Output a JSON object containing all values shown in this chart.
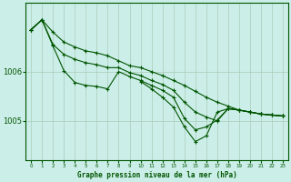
{
  "background_color": "#cceee8",
  "grid_color": "#aaccbb",
  "line_color": "#005500",
  "title": "Graphe pression niveau de la mer (hPa)",
  "title_color": "#005500",
  "hours": [
    0,
    1,
    2,
    3,
    4,
    5,
    6,
    7,
    8,
    9,
    10,
    11,
    12,
    13,
    14,
    15,
    16,
    17,
    18,
    19,
    20,
    21,
    22,
    23
  ],
  "yticks": [
    1005.0,
    1006.0
  ],
  "ylim": [
    1004.2,
    1007.4
  ],
  "xlim": [
    -0.5,
    23.5
  ],
  "line_upper": [
    1006.85,
    1007.05,
    1006.8,
    1006.6,
    1006.5,
    1006.42,
    1006.38,
    1006.32,
    1006.22,
    1006.12,
    1006.08,
    1006.0,
    1005.92,
    1005.82,
    1005.72,
    1005.6,
    1005.48,
    1005.38,
    1005.3,
    1005.22,
    1005.18,
    1005.14,
    1005.12,
    1005.1
  ],
  "line_mid1": [
    1006.85,
    1007.05,
    1006.55,
    1006.35,
    1006.25,
    1006.18,
    1006.14,
    1006.08,
    1006.08,
    1005.98,
    1005.92,
    1005.82,
    1005.74,
    1005.62,
    1005.38,
    1005.18,
    1005.08,
    1005.0,
    1005.25,
    1005.22,
    1005.18,
    1005.14,
    1005.12,
    1005.1
  ],
  "line_mid2": [
    1006.85,
    1007.05,
    1006.52,
    1006.02,
    1005.78,
    1005.72,
    1005.7,
    1005.65,
    1006.0,
    1005.9,
    1005.82,
    1005.72,
    1005.62,
    1005.48,
    1005.05,
    1004.82,
    1004.88,
    1005.02,
    1005.25,
    1005.22,
    1005.18,
    1005.14,
    1005.12,
    1005.1
  ],
  "line_deep": [
    1006.85,
    1007.05,
    null,
    null,
    null,
    null,
    null,
    null,
    null,
    null,
    1005.8,
    1005.65,
    1005.48,
    1005.28,
    1004.88,
    1004.58,
    1004.7,
    1005.18,
    1005.25,
    1005.22,
    1005.18,
    1005.14,
    1005.12,
    1005.1
  ]
}
